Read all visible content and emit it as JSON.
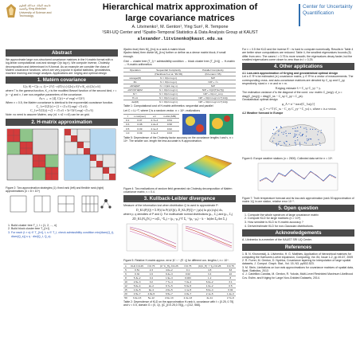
{
  "header": {
    "title_line1": "Hierarchical matrix approximation of",
    "title_line2": "large covariance matrices",
    "authors": "A. Litvinenko¹, M. Genton¹, Ying Sun¹, R. Tempone",
    "affiliation": "¹SRI-UQ Center and ¹Spatio-Temporal Statistics & Data Analysis Group",
    "affiliation2": "at KAUST",
    "email": "alexander.litvinenko@kaust.edu.sa",
    "kaust_logo_text": "جامعة الملك عبدالله للعلوم والتقنية King Abdullah University of Science and Technology",
    "cuq_logo_line1": "Center for Uncertainty",
    "cuq_logo_line2": "Quantification"
  },
  "col1": {
    "abstract_head": "Abstract",
    "abstract_text": "We approximate large non-structured covariance matrices in the H-matrix format with a log-linear computational cost and storage O(n log n). We compute inverse, Cholesky decomposition and determinant in H-format. As an example we consider the class of Matérn covariance functions, which are very popular in spatial statistics, geostatistics, machine learning and image analysis. Applications are: kriging and optimal design",
    "matern_head": "1. Matérn covariance",
    "matern_eq": "C(r; θ) = C(r; ν, ℓ) = 2^(1−ν)/Γ(ν) (√(2ν) r/ℓ)^ν K_ν(√(2ν) r/ℓ)",
    "matern_text": "where Γ is the gamma function, K_ν is the modified Bessel function of the second kind, r = |x − y| and ν, ℓ are non-negative parameters of the covariance.",
    "as_eq": "As ν → ∞ [4],",
    "gauss_eq": "C(r) = σ² exp(−r²/2ℓ²)",
    "half_text": "When ν = 0.5, the Matérn covariance is identical to the exponential covariance function.",
    "eq_32": "C_{ν=3/2}(r) = (1 + √3 r/ℓ) exp(−√3 r/ℓ)",
    "eq_52": "C_{ν=5/2}(r) = (1 + √5 r/ℓ + 5r²/3ℓ²) exp(−√5 r/ℓ)",
    "note": "Note: no need to assume Matérn, any (n1 × n2 × n3) can be an grid.",
    "hmat_head": "2. H-matrix approximation",
    "fig2_cap": "Figure 2: Two approximation strategies (1): fixed rank (left) and flexible rank (right) approximations (n = 8 × 10⁴)",
    "steps": [
      "Build cluster tree T_I, I = {1, 2, ..., n}",
      "Build block cluster tree T_{I×I}",
      "For each (t × s) ∈ T_{I×I}, t, s ∈ T_I, check admissibility condition min{diam(Q_t), diam(Q_s)} ≤ η · dist(Q_t, Q_s)."
    ]
  },
  "col2": {
    "p1": "if(adm=true) then M|_{t×s} is a rank-k matrix block",
    "p2": "if(adm=false) then divide M|_{t×s} further or define as a dense matrix block, if small enough.",
    "p3": "Grid → cluster tree (T_I) + admissibility condition → block cluster tree (T_{I×I}) → H-matrix → H-matrix arithmetics",
    "tbl1_rows": [
      [
        "Operation",
        "Sequential Complexity",
        "Parallel Complexity"
      ],
      [
        "",
        "(Hackbusch et al. '99-'06)",
        "(Kriemann '05)"
      ],
      [
        "storage(M)",
        "N = O(kn log n)",
        "N/P"
      ],
      [
        "Mx",
        "N = O(kn log n)",
        "N/P + √n"
      ],
      [
        "αM'⊕βM''",
        "N = O(k²n log n)",
        "N/P"
      ],
      [
        "αM'⊙M''⊕βM",
        "N = O(k²n log² n)",
        "N/P + O(|V(T)\\L(T)|)"
      ],
      [
        "M⁻¹",
        "N = O(k²n log² n)",
        "N/P + O(nn²_min)"
      ],
      [
        "H-LU",
        "N = O(k²n log² n)",
        "N/P + O(k²n log² n/n^{1/d})"
      ],
      [
        "det(M)",
        "N = O(k²n log² n)",
        "N/P + O(k²n log² n/n^{1/d})"
      ]
    ],
    "tbl1_cap": "Table 1: Computational cost of H-matrix arithmetics: sequential and parallel",
    "let_text": "Let C = LL^T, where ξ is a random vector. n = 10⁶, realizations",
    "tbl2_rows": [
      [
        "",
        "ℓ",
        "c.cost(sec)",
        "err",
        "m.dist.(MB)"
      ],
      [
        "",
        "0.1",
        "0.07",
        "2.7e-4",
        "0.54"
      ],
      [
        "",
        "0.3",
        "0.08",
        "1.2e-3",
        "0.58"
      ],
      [
        "",
        "0.5",
        "0.09",
        "2.1e-3",
        "0.62"
      ],
      [
        "",
        "1.0",
        "0.09",
        "4.1e-3",
        "0.63"
      ]
    ],
    "tbl2_cap": "Table 5: Dependence of the Cholesky factor accuracy on the covariance lengths ℓ and ν, n = 10⁴. The smaller cov. length the less accurate is H-approximation.",
    "fig4_cap": "Figure 4: Two realizations of random field generated via Cholesky decomposition of Matérn covariance matrix, ν = 0.4.",
    "kl_head": "3. Kullback-Leibler divergence",
    "kl_text": "Measure of the information lost when distribution Q is used to approximate P:",
    "kl_eq1": "D_KL(P||Q) = Σ P(i) ln P(i)/Q(i),  D_KL(P||Q) = ∫ p(x) ln p(x)/q(x) dx,",
    "kl_text2": "where p, q densities of P and Q. For multivariate normal distributions (μ₀, Σ₀) and (μ₁, Σ₁)",
    "kl_eq2": "2D_KL(N₀||N₁) = tr(Σ₁⁻¹Σ₀) + (μ₁−μ₀)^T Σ₁⁻¹(μ₁−μ₀) − k − ln(det Σ₀/det Σ₁)",
    "fig5_cap": "Figure 5: Relative H-matrix approx. error |K⁻¹ − (K̃⁻¹)| for different cov. lengths ℓ, n = 10⁴.",
    "tbl3_rows": [
      [
        "k",
        "KLD ℓ=0.25",
        "ℓ=0.75",
        "|C−C_H|₂ ℓ=0.25",
        "ℓ=0.75",
        "|C(C_H)⁻¹−I|₂ ℓ=0.25",
        "ℓ=0.75"
      ],
      [
        "5",
        "0.51",
        "2.3",
        "4.0e-2",
        "0.1",
        "4.8",
        "63"
      ],
      [
        "6",
        "0.34",
        "1.6",
        "9.4e-3",
        "0.02",
        "3.4",
        "22"
      ],
      [
        "8",
        "5.3e-2",
        "0.4",
        "1.9e-3",
        "0.003",
        "1.2",
        "8"
      ],
      [
        "10",
        "2.6e-3",
        "0.2",
        "7.7e-4",
        "7.0e-4",
        "6.0e-2",
        "3.1"
      ],
      [
        "12",
        "5.0e-4",
        "2e-2",
        "9.7e-5",
        "5.6e-5",
        "1.6e-2",
        "0.5"
      ],
      [
        "15",
        "1.0e-5",
        "9e-4",
        "2.0e-5",
        "1.1e-5",
        "8.0e-4",
        "0.02"
      ],
      [
        "20",
        "4.5e-7",
        "4.8e-5",
        "6.5e-7",
        "2.8e-7",
        "2.1e-5",
        "1.2e-3"
      ],
      [
        "50",
        "3.4e-13",
        "5e-12",
        "2.0e-13",
        "2.4e-13",
        "4e-11",
        "2.7e-9"
      ]
    ],
    "tbl3_cap": "Table 2: Dependence of KLD on the approximation H-rank k, covariance with ℓ = {0.25, 0.75} and ν = 0.5, domain G = [0, 1]², ||C_{ℓ=0.25,0.75}||₂ = {212, 568}."
  },
  "col3": {
    "p1": "For ν = 0.5 the KLD and the inverse K̃⁻¹ is hard to compute numerically. Results in Table 4 are better since computations are reduced. Table 4, the smallest eigenvalues bounds (5) differ from zero. The cases ℓ = 0.75 is more smooth; the eigenvalues decay faster, but the smallest eigenvalues come closer to zero than in ℓ = 0.25.",
    "apps_head": "4. Other applications",
    "apps_sub": "4.1 Low-rank approximation of Kriging and geostatistical optimal design",
    "apps_text": "Let s ∈ R^n be estimated (∗) covariance matrix, y ∈ R^m a vector of measurements. The corresponding cross- and auto-covariance matrices are denoted by C_sy and C_yy, respectively, sized n × m and m × m.",
    "krig_eq": "Kriging estimate  ŝ = C_sy C_yy⁻¹ y.",
    "est_text": "The estimation variance σ̂ is the diagonal of the cond. cov. matrix C_{ss|y}: σ̂_s = diag(C_{ss|y}) = diag(C_ss − C_sy C_yy⁻¹ C_ys).",
    "geo_text": "Geostatistical optimal design",
    "geo_eq1": "φ_A = n⁻¹ trace[C_{ss|y}]",
    "geo_eq2": "φ_C = c^T (C_ss − C_sy C_yy⁻¹ C_ys) c,  where c is a vector.",
    "weather_sub": "4.2 Weather forecast in Europe",
    "fig6_cap": "Figure 6: Europe weather stations (n = 2500). Collected data set for n = 10⁶.",
    "fig7_cap": "Figure 7: Truth temperature forecast and its low-rank approximation (rank 50 approximation of matrix 1/|) in one station, relative error 10⁻⁵.",
    "open_head": "5. Open question",
    "open_items": [
      "Compute the whole spectrum of large covariance matrix",
      "Compute KLD for large matrices (n > 10⁴)",
      "How sensible is KLD to H-matrix accuracy ?",
      "Derive/estimate KLD for non-Gaussian distributions."
    ],
    "ack_head": "Acknowledgements",
    "ack_text": "A. Litvinenko is a member of the KAUST SRI UQ Center.",
    "ref_head": "References",
    "refs": [
      "1. B. N. Khoromskij, A. Litvinenko, H. G. Matthies, Application of hierarchical matrices for computing the Karhunen-Loève expansion, Computing, Vol. 84, Issue 1-2, pp 49-67, 2009",
      "2. R. Furrer, M. Genton, D. Nychka, Covariance tapering for interpolation of large spatial datasets, J. Comput. Graph. Stat., Vol. 15, N3, pp502-523.",
      "3. M. Stein, Limitations on low rank approximations for covariance matrices of spatial data, Spat. Statistics, 2013",
      "4. J. Castrillon-Candás, M. Genton, R. Yokota, Multi-Level Restricted Maximum Likelihood Cov. Estim. and Kriging for Large Non-Gridded Datasets, 2014."
    ]
  }
}
